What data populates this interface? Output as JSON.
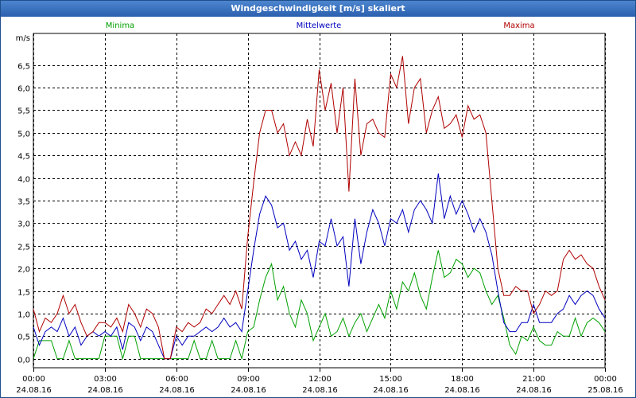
{
  "window": {
    "title": "Windgeschwindigkeit [m/s] skaliert"
  },
  "chart_data": {
    "type": "line",
    "title": "Windgeschwindigkeit [m/s] skaliert",
    "ylabel": "m/s",
    "ylim": [
      -0.2,
      7.2
    ],
    "yticks": [
      "0,0",
      "0,5",
      "1,0",
      "1,5",
      "2,0",
      "2,5",
      "3,0",
      "3,5",
      "4,0",
      "4,5",
      "5,0",
      "5,5",
      "6,0",
      "6,5"
    ],
    "xlim": [
      0,
      24
    ],
    "xticks": [
      {
        "time": "00:00",
        "date": "24.08.16"
      },
      {
        "time": "03:00",
        "date": "24.08.16"
      },
      {
        "time": "06:00",
        "date": "24.08.16"
      },
      {
        "time": "09:00",
        "date": "24.08.16"
      },
      {
        "time": "12:00",
        "date": "24.08.16"
      },
      {
        "time": "15:00",
        "date": "24.08.16"
      },
      {
        "time": "18:00",
        "date": "24.08.16"
      },
      {
        "time": "21:00",
        "date": "24.08.16"
      },
      {
        "time": "00:00",
        "date": "25.08.16"
      }
    ],
    "grid": true,
    "legend": "top",
    "series": [
      {
        "name": "Minima",
        "color": "#00a000",
        "x": [
          0,
          0.25,
          0.5,
          0.75,
          1,
          1.25,
          1.5,
          1.75,
          2,
          2.25,
          2.5,
          2.75,
          3,
          3.25,
          3.5,
          3.75,
          4,
          4.25,
          4.5,
          4.75,
          5,
          5.25,
          5.5,
          5.75,
          6,
          6.25,
          6.5,
          6.75,
          7,
          7.25,
          7.5,
          7.75,
          8,
          8.25,
          8.5,
          8.75,
          9,
          9.25,
          9.5,
          9.75,
          10,
          10.25,
          10.5,
          10.75,
          11,
          11.25,
          11.5,
          11.75,
          12,
          12.25,
          12.5,
          12.75,
          13,
          13.25,
          13.5,
          13.75,
          14,
          14.25,
          14.5,
          14.75,
          15,
          15.25,
          15.5,
          15.75,
          16,
          16.25,
          16.5,
          16.75,
          17,
          17.25,
          17.5,
          17.75,
          18,
          18.25,
          18.5,
          18.75,
          19,
          19.25,
          19.5,
          19.75,
          20,
          20.25,
          20.5,
          20.75,
          21,
          21.25,
          21.5,
          21.75,
          22,
          22.25,
          22.5,
          22.75,
          23,
          23.25,
          23.5,
          23.75,
          24
        ],
        "y": [
          0.0,
          0.4,
          0.4,
          0.4,
          0.0,
          0.0,
          0.4,
          0.0,
          0.0,
          0.0,
          0.0,
          0.0,
          0.5,
          0.5,
          0.5,
          0.0,
          0.5,
          0.5,
          0.0,
          0.0,
          0.0,
          0.0,
          0.0,
          0.0,
          0.0,
          0.0,
          0.0,
          0.4,
          0.0,
          0.0,
          0.4,
          0.0,
          0.0,
          0.0,
          0.4,
          0.0,
          0.6,
          0.7,
          1.3,
          1.8,
          2.1,
          1.3,
          1.6,
          1.0,
          0.7,
          1.3,
          1.0,
          0.4,
          0.7,
          1.0,
          0.5,
          0.6,
          0.9,
          0.5,
          0.8,
          1.0,
          0.6,
          0.9,
          1.2,
          0.9,
          1.5,
          1.1,
          1.7,
          1.5,
          1.9,
          1.4,
          1.1,
          1.8,
          2.4,
          1.8,
          1.9,
          2.2,
          2.1,
          1.8,
          2.0,
          1.9,
          1.5,
          1.2,
          1.4,
          0.9,
          0.3,
          0.1,
          0.5,
          0.4,
          0.7,
          0.4,
          0.3,
          0.3,
          0.6,
          0.5,
          0.5,
          0.9,
          0.5,
          0.8,
          0.9,
          0.8,
          0.6
        ]
      },
      {
        "name": "Mittelwerte",
        "color": "#0000c0",
        "x": [
          0,
          0.25,
          0.5,
          0.75,
          1,
          1.25,
          1.5,
          1.75,
          2,
          2.25,
          2.5,
          2.75,
          3,
          3.25,
          3.5,
          3.75,
          4,
          4.25,
          4.5,
          4.75,
          5,
          5.25,
          5.5,
          5.75,
          6,
          6.25,
          6.5,
          6.75,
          7,
          7.25,
          7.5,
          7.75,
          8,
          8.25,
          8.5,
          8.75,
          9,
          9.25,
          9.5,
          9.75,
          10,
          10.25,
          10.5,
          10.75,
          11,
          11.25,
          11.5,
          11.75,
          12,
          12.25,
          12.5,
          12.75,
          13,
          13.25,
          13.5,
          13.75,
          14,
          14.25,
          14.5,
          14.75,
          15,
          15.25,
          15.5,
          15.75,
          16,
          16.25,
          16.5,
          16.75,
          17,
          17.25,
          17.5,
          17.75,
          18,
          18.25,
          18.5,
          18.75,
          19,
          19.25,
          19.5,
          19.75,
          20,
          20.25,
          20.5,
          20.75,
          21,
          21.25,
          21.5,
          21.75,
          22,
          22.25,
          22.5,
          22.75,
          23,
          23.25,
          23.5,
          23.75,
          24
        ],
        "y": [
          0.7,
          0.3,
          0.6,
          0.7,
          0.6,
          0.9,
          0.5,
          0.7,
          0.3,
          0.5,
          0.6,
          0.5,
          0.6,
          0.5,
          0.7,
          0.2,
          0.8,
          0.7,
          0.4,
          0.7,
          0.6,
          0.3,
          0.0,
          0.0,
          0.5,
          0.3,
          0.5,
          0.5,
          0.6,
          0.7,
          0.6,
          0.7,
          0.9,
          0.7,
          0.8,
          0.6,
          1.5,
          2.4,
          3.2,
          3.6,
          3.4,
          2.9,
          3.0,
          2.4,
          2.6,
          2.2,
          2.4,
          1.8,
          2.6,
          2.5,
          3.1,
          2.5,
          2.7,
          1.6,
          3.1,
          2.1,
          2.8,
          3.3,
          3.0,
          2.5,
          3.1,
          3.0,
          3.3,
          2.8,
          3.3,
          3.5,
          3.3,
          3.0,
          4.1,
          3.1,
          3.6,
          3.2,
          3.5,
          3.2,
          2.8,
          3.1,
          2.8,
          2.3,
          1.5,
          0.8,
          0.6,
          0.6,
          0.8,
          0.8,
          1.2,
          0.8,
          0.8,
          0.8,
          1.0,
          1.1,
          1.4,
          1.2,
          1.4,
          1.5,
          1.4,
          1.1,
          0.9
        ]
      },
      {
        "name": "Maxima",
        "color": "#b00000",
        "x": [
          0,
          0.25,
          0.5,
          0.75,
          1,
          1.25,
          1.5,
          1.75,
          2,
          2.25,
          2.5,
          2.75,
          3,
          3.25,
          3.5,
          3.75,
          4,
          4.25,
          4.5,
          4.75,
          5,
          5.25,
          5.5,
          5.75,
          6,
          6.25,
          6.5,
          6.75,
          7,
          7.25,
          7.5,
          7.75,
          8,
          8.25,
          8.5,
          8.75,
          9,
          9.25,
          9.5,
          9.75,
          10,
          10.25,
          10.5,
          10.75,
          11,
          11.25,
          11.5,
          11.75,
          12,
          12.25,
          12.5,
          12.75,
          13,
          13.25,
          13.5,
          13.75,
          14,
          14.25,
          14.5,
          14.75,
          15,
          15.25,
          15.5,
          15.75,
          16,
          16.25,
          16.5,
          16.75,
          17,
          17.25,
          17.5,
          17.75,
          18,
          18.25,
          18.5,
          18.75,
          19,
          19.25,
          19.5,
          19.75,
          20,
          20.25,
          20.5,
          20.75,
          21,
          21.25,
          21.5,
          21.75,
          22,
          22.25,
          22.5,
          22.75,
          23,
          23.25,
          23.5,
          23.75,
          24
        ],
        "y": [
          1.1,
          0.6,
          0.9,
          0.8,
          1.0,
          1.4,
          1.0,
          1.2,
          0.8,
          0.5,
          0.6,
          0.8,
          0.8,
          0.7,
          0.9,
          0.6,
          1.2,
          1.0,
          0.7,
          1.1,
          1.0,
          0.7,
          0.0,
          0.0,
          0.7,
          0.6,
          0.8,
          0.7,
          0.8,
          1.1,
          1.0,
          1.2,
          1.4,
          1.2,
          1.5,
          1.1,
          2.7,
          3.9,
          5.0,
          5.5,
          5.5,
          5.0,
          5.2,
          4.5,
          4.8,
          4.5,
          5.3,
          4.7,
          6.4,
          5.5,
          6.1,
          5.0,
          6.0,
          3.7,
          6.2,
          4.5,
          5.2,
          5.3,
          5.0,
          4.9,
          6.3,
          6.0,
          6.7,
          5.2,
          6.0,
          6.2,
          5.0,
          5.5,
          5.8,
          5.1,
          5.2,
          5.4,
          4.9,
          5.6,
          5.3,
          5.4,
          5.0,
          3.5,
          2.0,
          1.4,
          1.4,
          1.6,
          1.5,
          1.5,
          1.0,
          1.2,
          1.5,
          1.4,
          1.5,
          2.2,
          2.4,
          2.2,
          2.3,
          2.1,
          2.0,
          1.6,
          1.3
        ]
      }
    ]
  }
}
